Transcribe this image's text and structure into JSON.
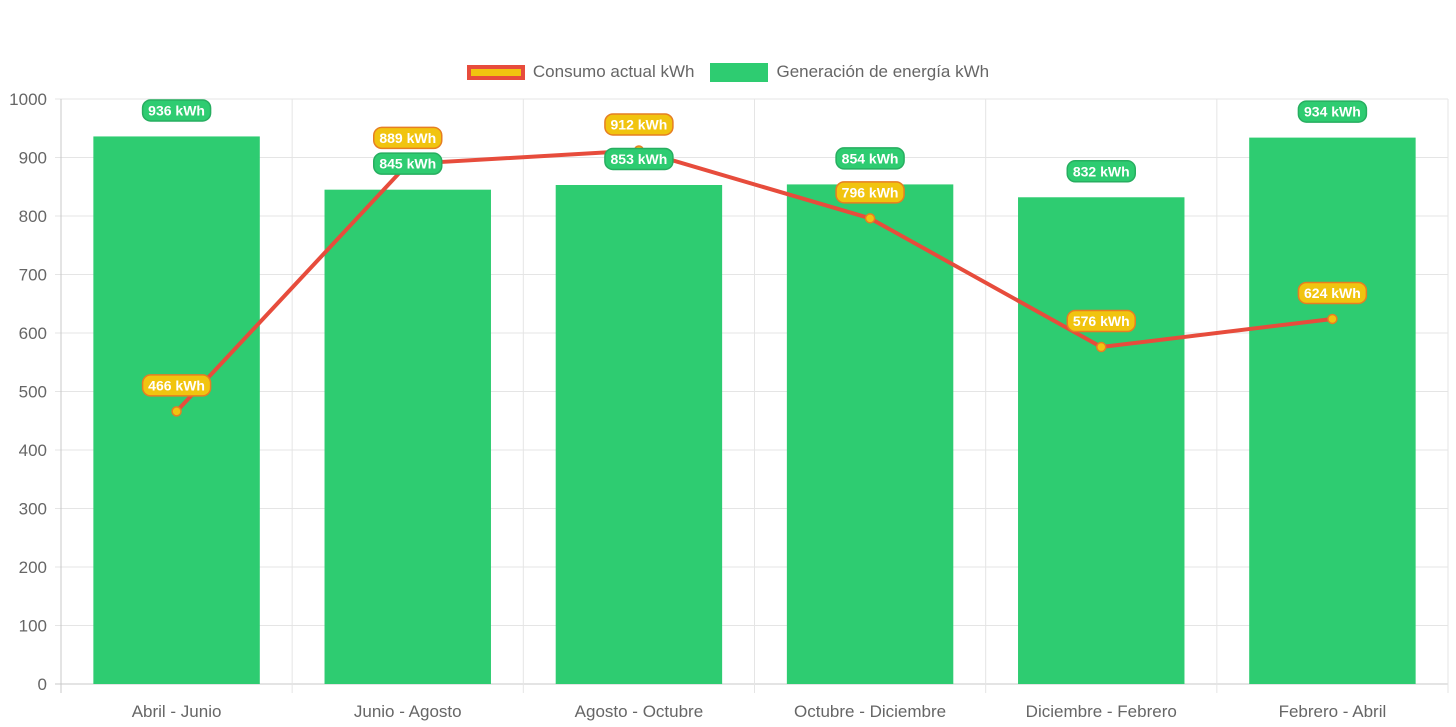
{
  "chart_data": {
    "type": "bar",
    "categories": [
      "Abril - Junio",
      "Junio - Agosto",
      "Agosto - Octubre",
      "Octubre - Diciembre",
      "Diciembre - Febrero",
      "Febrero - Abril"
    ],
    "series": [
      {
        "name": "Consumo actual kWh",
        "kind": "line",
        "values": [
          466,
          889,
          912,
          796,
          576,
          624
        ],
        "labels": [
          "466 kWh",
          "889 kWh",
          "912 kWh",
          "796 kWh",
          "576 kWh",
          "624 kWh"
        ],
        "color": "#e74c3c",
        "fill": "#f1c40f"
      },
      {
        "name": "Generación de energía kWh",
        "kind": "bar",
        "values": [
          936,
          845,
          853,
          854,
          832,
          934
        ],
        "labels": [
          "936 kWh",
          "845 kWh",
          "853 kWh",
          "854 kWh",
          "832 kWh",
          "934 kWh"
        ],
        "color": "#2ecc71"
      }
    ],
    "yticks": [
      "0",
      "100",
      "200",
      "300",
      "400",
      "500",
      "600",
      "700",
      "800",
      "900",
      "1000"
    ],
    "ylim": [
      0,
      1000
    ],
    "title": "",
    "xlabel": "",
    "ylabel": "",
    "grid": true,
    "legend_position": "top-center"
  }
}
